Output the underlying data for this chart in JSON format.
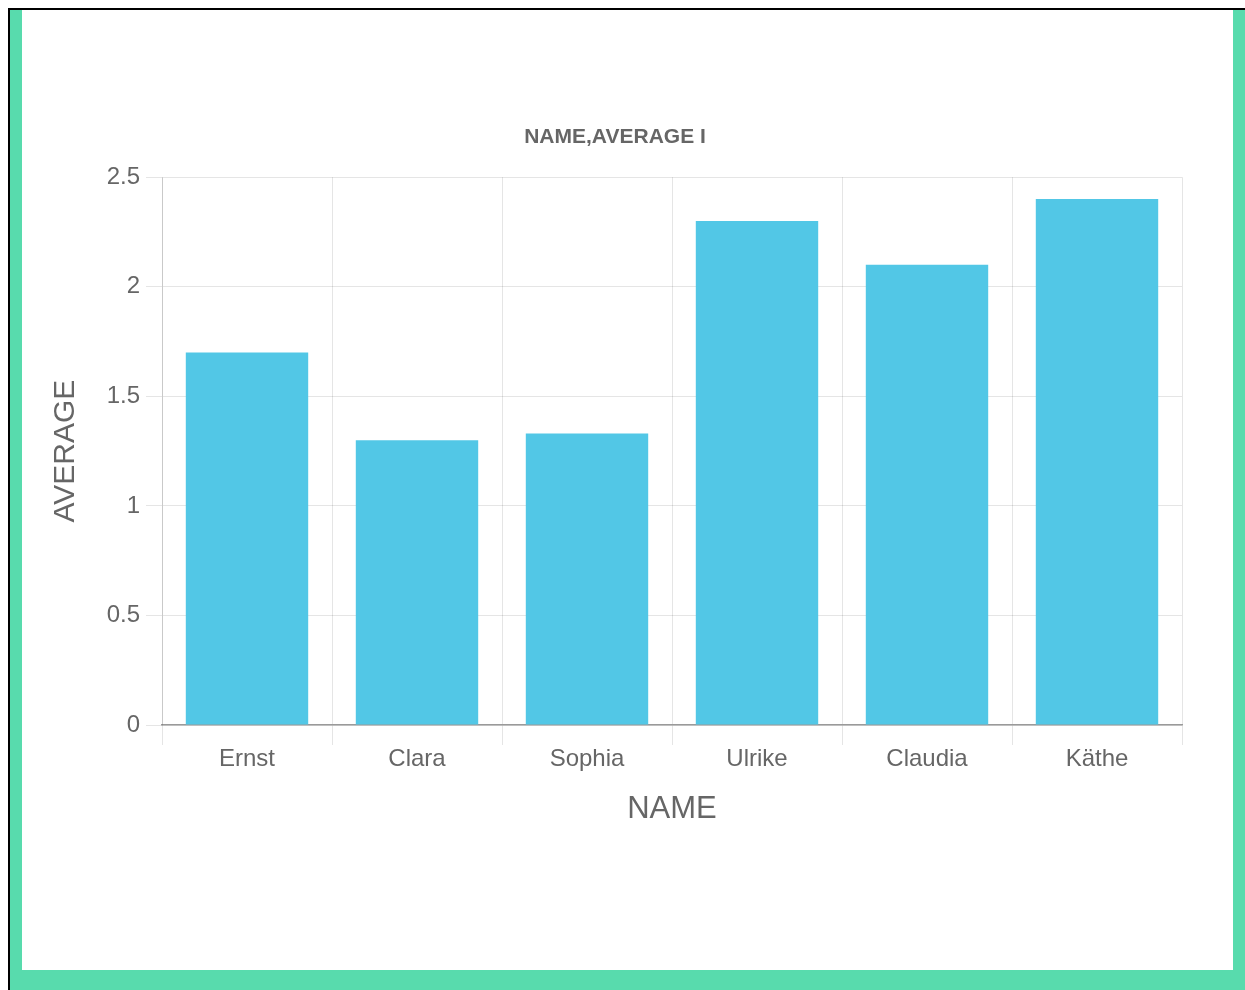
{
  "chart_data": {
    "type": "bar",
    "title": "NAME,AVERAGE I",
    "xlabel": "NAME",
    "ylabel": "AVERAGE",
    "categories": [
      "Ernst",
      "Clara",
      "Sophia",
      "Ulrike",
      "Claudia",
      "Käthe"
    ],
    "values": [
      1.7,
      1.3,
      1.33,
      2.3,
      2.1,
      2.4
    ],
    "color": "#52c7e6",
    "ylim": [
      0,
      2.5
    ],
    "yticks": [
      0,
      0.5,
      1,
      1.5,
      2,
      2.5
    ],
    "grid": true
  }
}
